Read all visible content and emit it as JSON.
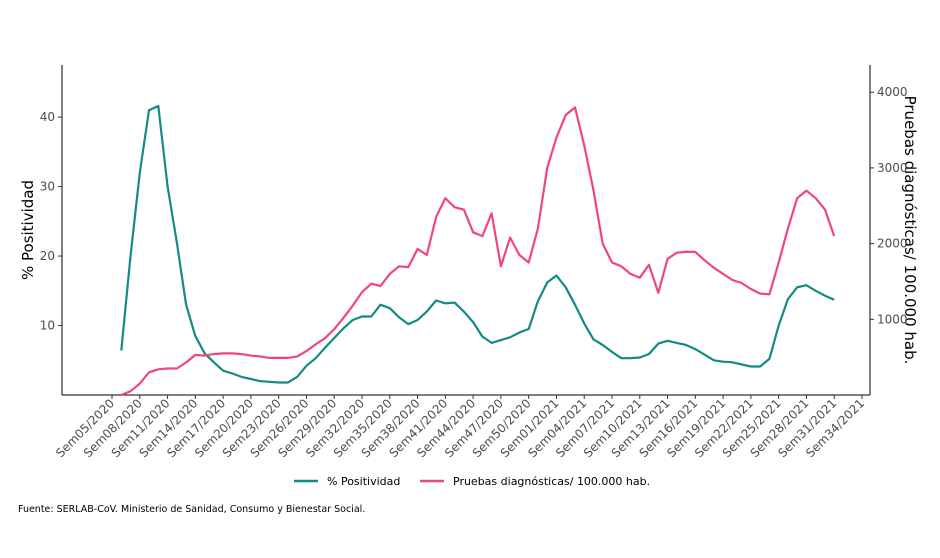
{
  "chart_data": {
    "type": "line",
    "y_label": "% Positividad",
    "y2_label": "Pruebas diagnósticas/ 100.000 hab.",
    "source": "Fuente: SERLAB-CoV. Ministerio de Sanidad, Consumo y Bienestar Social.",
    "categories": [
      "Sem05/2020",
      null,
      null,
      "Sem08/2020",
      null,
      null,
      "Sem11/2020",
      null,
      null,
      "Sem14/2020",
      null,
      null,
      "Sem17/2020",
      null,
      null,
      "Sem20/2020",
      null,
      null,
      "Sem23/2020",
      null,
      null,
      "Sem26/2020",
      null,
      null,
      "Sem29/2020",
      null,
      null,
      "Sem32/2020",
      null,
      null,
      "Sem35/2020",
      null,
      null,
      "Sem38/2020",
      null,
      null,
      "Sem41/2020",
      null,
      null,
      "Sem44/2020",
      null,
      null,
      "Sem47/2020",
      null,
      null,
      "Sem50/2020",
      null,
      null,
      "Sem01/2021",
      null,
      null,
      "Sem04/2021",
      null,
      null,
      "Sem07/2021",
      null,
      null,
      "Sem10/2021",
      null,
      null,
      "Sem13/2021",
      null,
      null,
      "Sem16/2021",
      null,
      null,
      "Sem19/2021",
      null,
      null,
      "Sem22/2021",
      null,
      null,
      "Sem25/2021",
      null,
      null,
      "Sem28/2021",
      null,
      null,
      "Sem31/2021",
      null,
      null,
      "Sem34/2021"
    ],
    "series": [
      {
        "name": "% Positividad",
        "color": "#138a84",
        "values": [
          null,
          6.4,
          20,
          32,
          41,
          41.6,
          30,
          22,
          13,
          8.5,
          6,
          4.7,
          3.5,
          3.1,
          2.6,
          2.3,
          2.0,
          1.9,
          1.8,
          1.8,
          2.6,
          4.2,
          5.3,
          6.8,
          8.2,
          9.6,
          10.8,
          11.3,
          11.3,
          13.0,
          12.5,
          11.2,
          10.2,
          10.8,
          12.0,
          13.6,
          13.2,
          13.3,
          12.0,
          10.5,
          8.4,
          7.5,
          7.9,
          8.3,
          9.0,
          9.5,
          13.5,
          16.2,
          17.2,
          15.5,
          13,
          10.3,
          8,
          7.2,
          6.2,
          5.3,
          5.3,
          5.4,
          5.9,
          7.4,
          7.8,
          7.5,
          7.2,
          6.6,
          5.8,
          5.0,
          4.8,
          4.7,
          4.4,
          4.1,
          4.1,
          5.2,
          10,
          13.8,
          15.5,
          15.8,
          15.0,
          14.3,
          13.7,
          null,
          null,
          null
        ]
      },
      {
        "name": "Pruebas diagnósticas/ 100.000 hab.",
        "color": "#f0467a",
        "axis": "y2",
        "values": [
          null,
          0,
          50,
          150,
          300,
          340,
          350,
          350,
          430,
          530,
          520,
          540,
          550,
          550,
          540,
          520,
          510,
          490,
          490,
          490,
          510,
          580,
          670,
          750,
          870,
          1020,
          1180,
          1360,
          1470,
          1440,
          1600,
          1700,
          1690,
          1930,
          1850,
          2350,
          2600,
          2480,
          2450,
          2150,
          2100,
          2400,
          1700,
          2080,
          1850,
          1750,
          2200,
          3000,
          3400,
          3700,
          3800,
          3300,
          2700,
          2000,
          1750,
          1700,
          1600,
          1550,
          1720,
          1350,
          1800,
          1880,
          1890,
          1890,
          1780,
          1680,
          1600,
          1520,
          1480,
          1400,
          1340,
          1330,
          1750,
          2200,
          2600,
          2700,
          2600,
          2450,
          2100,
          null,
          null,
          null
        ]
      }
    ],
    "ylim": [
      0,
      47.5
    ],
    "yticks": [
      10,
      20,
      30,
      40
    ],
    "y2lim": [
      0,
      4360
    ],
    "y2ticks": [
      1000,
      2000,
      3000,
      4000
    ],
    "grid": false,
    "legend": "bottom"
  }
}
